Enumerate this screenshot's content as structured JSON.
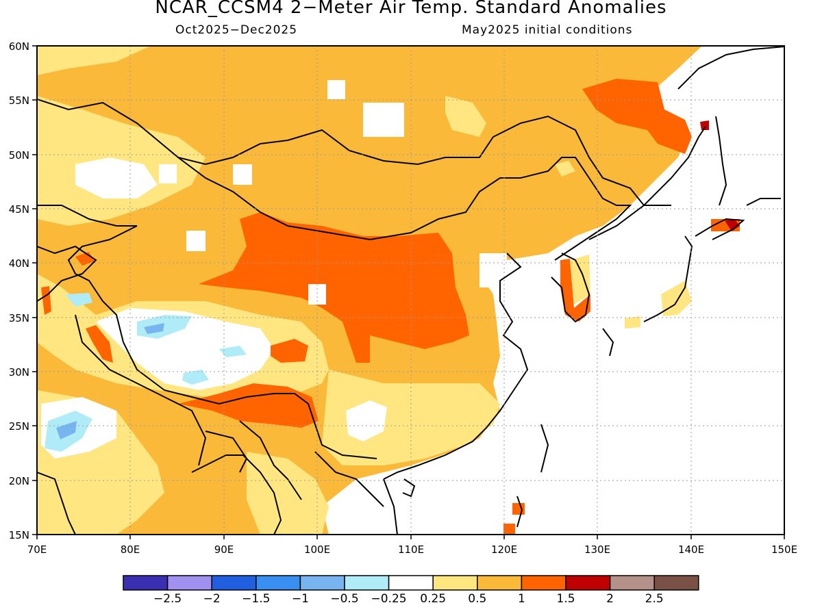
{
  "title": "NCAR_CCSM4 2−Meter Air Temp. Standard Anomalies",
  "subtitle_left": "Oct2025−Dec2025",
  "subtitle_right": "May2025 initial conditions",
  "map": {
    "lon_range": [
      70,
      150
    ],
    "lat_range": [
      15,
      60
    ],
    "lat_labels": [
      "60N",
      "55N",
      "50N",
      "45N",
      "40N",
      "35N",
      "30N",
      "25N",
      "20N",
      "15N"
    ],
    "lon_labels": [
      "70E",
      "80E",
      "90E",
      "100E",
      "110E",
      "120E",
      "130E",
      "140E",
      "150E"
    ]
  },
  "colorbar": {
    "colors": [
      "#3a2fb0",
      "#a090f0",
      "#2060e0",
      "#3a90f0",
      "#78b4f0",
      "#b0ecf8",
      "#ffffff",
      "#ffe680",
      "#fbb93a",
      "#ff6400",
      "#c00000",
      "#b4928a",
      "#7a5245"
    ],
    "labels": [
      "−2.5",
      "−2",
      "−1.5",
      "−1",
      "−0.5",
      "−0.25",
      "0.25",
      "0.5",
      "1",
      "1.5",
      "2",
      "2.5"
    ]
  }
}
